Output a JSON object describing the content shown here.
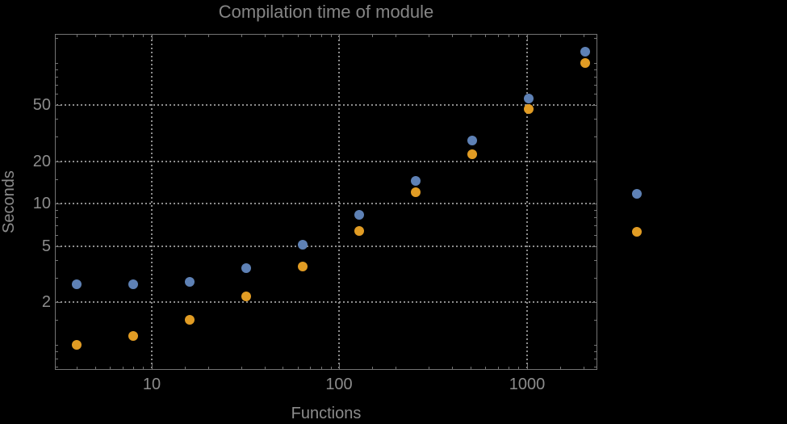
{
  "title": "Compilation time of module",
  "colors": {
    "background": "#000000",
    "frame": "#737373",
    "grid": "#8c8c8c",
    "text": "#8c8c8c",
    "title_text": "#858585",
    "series_blue": "#5e81b5",
    "series_orange": "#e19c24"
  },
  "chart_data": {
    "type": "scatter",
    "title": "Compilation time of module",
    "xlabel": "Functions",
    "ylabel": "Seconds",
    "x_scale": "log",
    "y_scale": "log",
    "x_range": [
      3.06,
      2366
    ],
    "y_range": [
      0.664,
      160
    ],
    "x_ticks_labeled": [
      10,
      100,
      1000
    ],
    "y_ticks_labeled": [
      2,
      5,
      10,
      20,
      50
    ],
    "grid": "dotted gridlines at labeled ticks only",
    "legend_position": "right-center",
    "x": [
      4,
      8,
      16,
      32,
      64,
      128,
      256,
      512,
      1024,
      2048
    ],
    "series": [
      {
        "name": "series-blue",
        "color": "#5e81b5",
        "values": [
          2.7,
          2.7,
          2.8,
          3.5,
          5.1,
          8.3,
          14.6,
          28,
          56,
          120
        ]
      },
      {
        "name": "series-orange",
        "color": "#e19c24",
        "values": [
          1.0,
          1.15,
          1.5,
          2.2,
          3.6,
          6.4,
          12,
          22.5,
          47,
          100
        ]
      }
    ],
    "legend_markers": [
      {
        "series": "series-blue",
        "color": "#5e81b5",
        "y_value": 11.7
      },
      {
        "series": "series-orange",
        "color": "#e19c24",
        "y_value": 6.3
      }
    ]
  }
}
